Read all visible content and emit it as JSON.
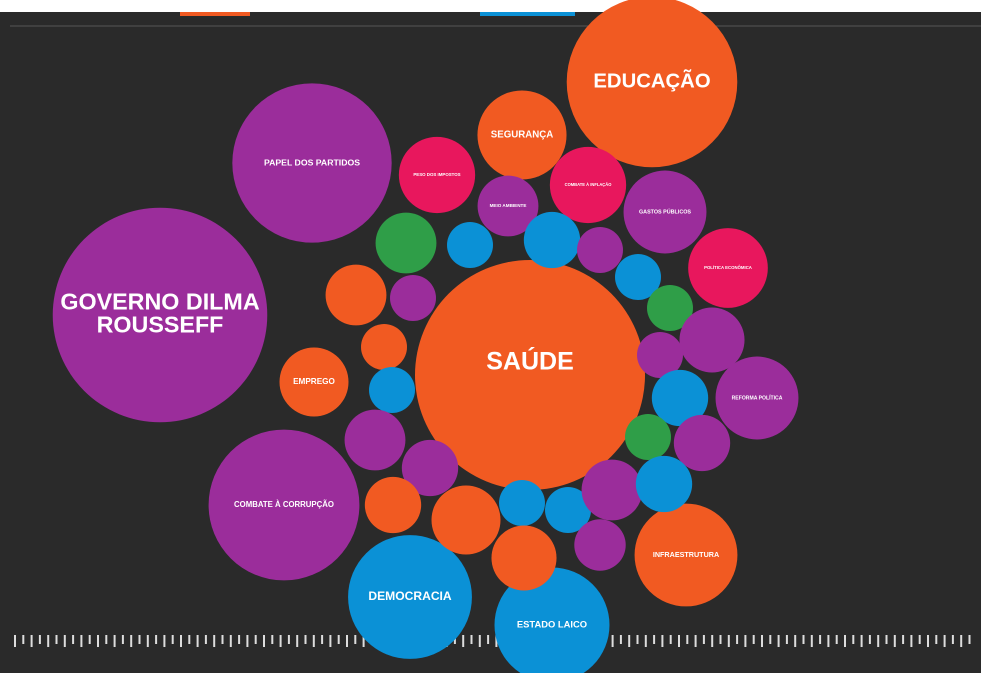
{
  "chart_data": {
    "type": "packed-bubble",
    "categories": [
      "SAÚDE",
      "GOVERNO DILMA ROUSSEFF",
      "PAPEL DOS PARTIDOS",
      "EDUCAÇÃO",
      "COMBATE À CORRUPÇÃO",
      "DEMOCRACIA",
      "ESTADO LAICO",
      "INFRAESTRUTURA",
      "REFORMA POLÍTICA",
      "POLÍTICA ECONÔMICA",
      "GASTOS PÚBLICOS",
      "SEGURANÇA",
      "PESO DOS IMPOSTOS",
      "COMBATE À INFLAÇÃO",
      "EMPREGO",
      "MEIO AMBIENTE",
      null,
      null,
      null,
      null,
      null,
      null,
      null,
      null,
      null,
      null,
      null,
      null,
      null,
      null,
      null,
      null,
      null,
      null,
      null,
      null,
      null,
      null,
      null,
      null,
      null
    ],
    "values": [
      100,
      87,
      48,
      55,
      43,
      29,
      25,
      20,
      13,
      12,
      13,
      15,
      11,
      11,
      9,
      7,
      7,
      4,
      6,
      4,
      4,
      4,
      7,
      4,
      4,
      4,
      8,
      4,
      6,
      4,
      6,
      7,
      6,
      6,
      9,
      4,
      4,
      7,
      6,
      8,
      5
    ],
    "colors": [
      "#f15a22",
      "#9b2d9b",
      "#9b2d9b",
      "#f15a22",
      "#9b2d9b",
      "#0b91d6",
      "#0b91d6",
      "#f15a22",
      "#9b2d9b",
      "#e8175d",
      "#9b2d9b",
      "#f15a22",
      "#e8175d",
      "#e8175d",
      "#f15a22",
      "#9b2d9b",
      "#2f9e48",
      "#0b91d6",
      "#0b91d6",
      "#9b2d9b",
      "#0b91d6",
      "#2f9e48",
      "#f15a22",
      "#9b2d9b",
      "#f15a22",
      "#0b91d6",
      "#9b2d9b",
      "#9b2d9b",
      "#0b91d6",
      "#2f9e48",
      "#9b2d9b",
      "#9b2d9b",
      "#9b2d9b",
      "#f15a22",
      "#f15a22",
      "#0b91d6",
      "#0b91d6",
      "#9b2d9b",
      "#0b91d6",
      "#f15a22",
      "#9b2d9b"
    ]
  }
}
